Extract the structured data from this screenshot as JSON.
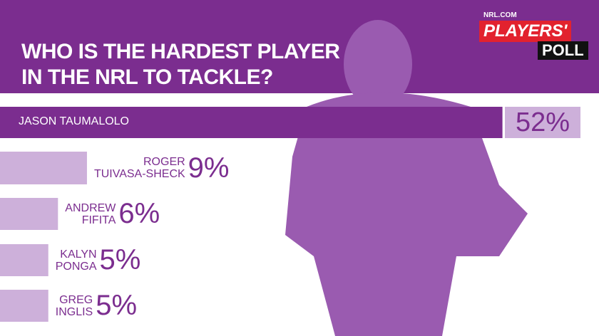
{
  "header": {
    "brand": "NRL.COM",
    "logo_top": "PLAYERS'",
    "logo_bottom": "POLL"
  },
  "chart_data": {
    "type": "bar",
    "orientation": "horizontal",
    "title": "WHO IS THE HARDEST PLAYER\nIN THE NRL TO TACKLE?",
    "categories": [
      "JASON TAUMALOLO",
      "ROGER\nTUIVASA-SHECK",
      "ANDREW\nFIFITA",
      "KALYN\nPONGA",
      "GREG\nINGLIS"
    ],
    "values": [
      52,
      9,
      6,
      5,
      5
    ],
    "value_labels": [
      "52%",
      "9%",
      "6%",
      "5%",
      "5%"
    ],
    "colors": [
      "#7b2d8f",
      "#cdb0da",
      "#cdb0da",
      "#cdb0da",
      "#cdb0da"
    ]
  }
}
